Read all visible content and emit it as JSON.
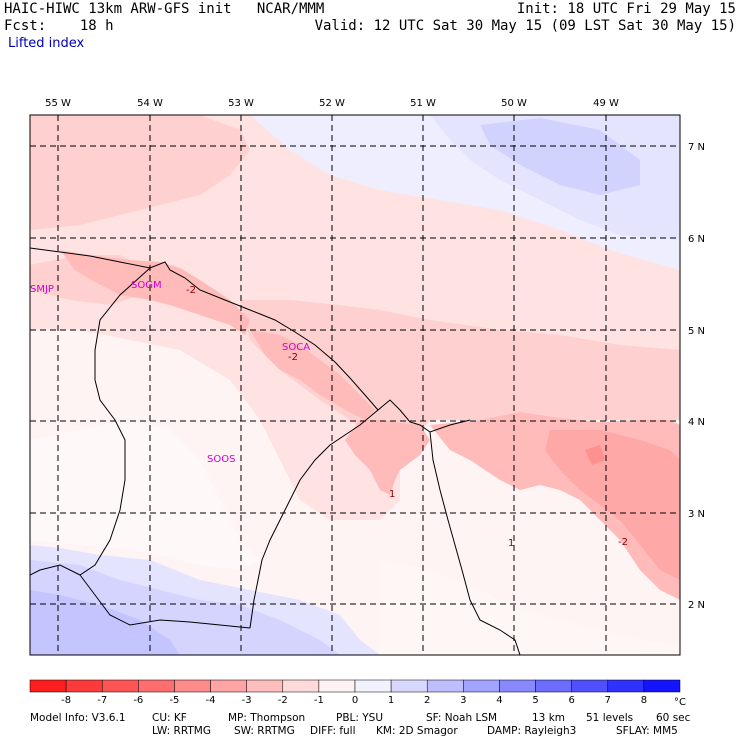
{
  "header": {
    "title": "HAIC-HIWC 13km ARW-GFS init   NCAR/MMM",
    "fcst": "Fcst:    18 h",
    "init": "Init: 18 UTC Fri 29 May 15",
    "valid": "Valid: 12 UTC Sat 30 May 15 (09 LST Sat 30 May 15)",
    "field": "Lifted index"
  },
  "map": {
    "lon_labels": [
      "55 W",
      "54 W",
      "53 W",
      "52 W",
      "51 W",
      "50 W",
      "49 W"
    ],
    "lat_labels": [
      "7 N",
      "6 N",
      "5 N",
      "4 N",
      "3 N",
      "2 N"
    ],
    "stations": [
      "SMJP",
      "SOGM",
      "SOCA",
      "SOOS"
    ],
    "contour_labels": [
      "-2",
      "-2",
      "1",
      "1",
      "-2"
    ],
    "colors": {
      "frame": "#000000",
      "grid": "#000000",
      "coast": "#000000",
      "station": "#d000d0",
      "contour_label": "#8b0000"
    }
  },
  "colorbar": {
    "ticks": [
      "-8",
      "-7",
      "-6",
      "-5",
      "-4",
      "-3",
      "-2",
      "-1",
      "0",
      "1",
      "2",
      "3",
      "4",
      "5",
      "6",
      "7",
      "8"
    ],
    "unit": "°C",
    "colors": [
      "#ff1e1e",
      "#ff3a3a",
      "#ff5454",
      "#ff6e6e",
      "#ff8a8a",
      "#ffa4a4",
      "#ffbebe",
      "#ffdada",
      "#fff2f2",
      "#f2f2ff",
      "#d8d8ff",
      "#bebeff",
      "#a2a2ff",
      "#8888ff",
      "#6c6cff",
      "#5050ff",
      "#3030ff",
      "#1414ff"
    ]
  },
  "footer": {
    "model": "Model Info: V3.6.1",
    "cu": "CU: KF",
    "mp": "MP: Thompson",
    "pbl": "PBL: YSU",
    "sf": "SF: Noah LSM",
    "res": "13 km",
    "levels": "51 levels",
    "dt": "60 sec",
    "lw": "LW: RRTMG",
    "sw": "SW: RRTMG",
    "diff": "DIFF: full",
    "km": "KM: 2D Smagor",
    "damp": "DAMP: Rayleigh3",
    "sflay": "SFLAY: MM5"
  }
}
